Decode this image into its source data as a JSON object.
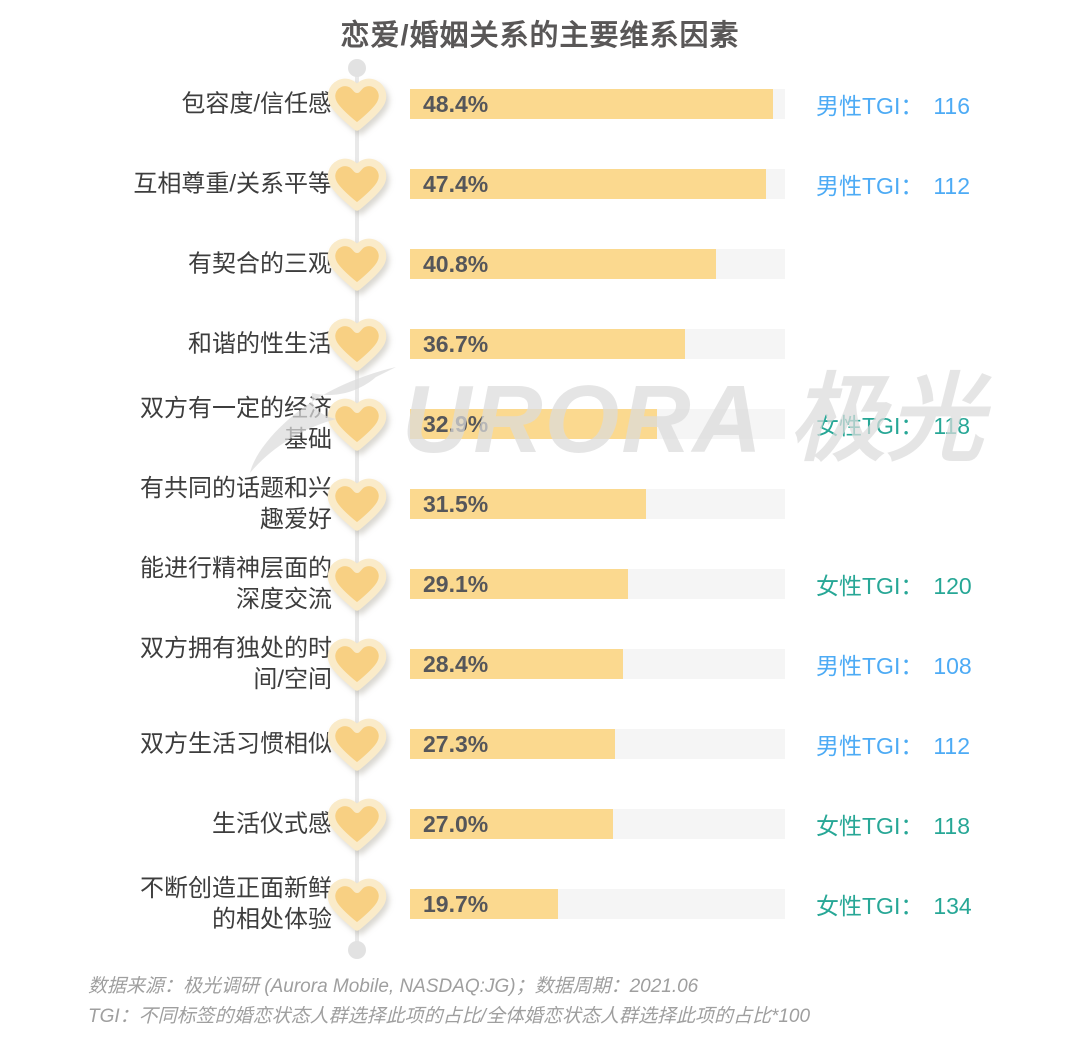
{
  "title": "恋爱/婚姻关系的主要维系因素",
  "watermark": {
    "logo": "aurora-swoosh-logo",
    "brand_text": "URORA 极光"
  },
  "footer": {
    "source_line": "数据来源：极光调研 (Aurora Mobile, NASDAQ:JG)；数据周期：2021.06",
    "tgi_note": "TGI：不同标签的婚恋状态人群选择此项的占比/全体婚恋状态人群选择此项的占比*100"
  },
  "colors": {
    "title_text": "#595757",
    "label_text": "#3d3d3d",
    "pct_text": "#55565a",
    "bar_fill": "#fbd98f",
    "bar_track": "#f5f5f5",
    "heart_fill": "#f8d083",
    "heart_border": "#faebc9",
    "male_tgi": "#4dabf5",
    "female_tgi": "#27a796",
    "timeline": "#e9e9e9",
    "footer_text": "#9f9f9f"
  },
  "chart_data": {
    "type": "bar",
    "orientation": "horizontal",
    "title": "恋爱/婚姻关系的主要维系因素",
    "value_unit": "%",
    "axis_max": 50,
    "grid": false,
    "legend": false,
    "categories": [
      "包容度/信任感",
      "互相尊重/关系平等",
      "有契合的三观",
      "和谐的性生活",
      "双方有一定的经济基础",
      "有共同的话题和兴趣爱好",
      "能进行精神层面的深度交流",
      "双方拥有独处的时间/空间",
      "双方生活习惯相似",
      "生活仪式感",
      "不断创造正面新鲜的相处体验"
    ],
    "values": [
      48.4,
      47.4,
      40.8,
      36.7,
      32.9,
      31.5,
      29.1,
      28.4,
      27.3,
      27.0,
      19.7
    ],
    "rows": [
      {
        "label_lines": "包容度/信任感",
        "value": 48.4,
        "pct_label": "48.4%",
        "tgi_label": "男性TGI：",
        "tgi_value": "116",
        "tgi_type": "male"
      },
      {
        "label_lines": "互相尊重/关系平等",
        "value": 47.4,
        "pct_label": "47.4%",
        "tgi_label": "男性TGI：",
        "tgi_value": "112",
        "tgi_type": "male"
      },
      {
        "label_lines": "有契合的三观",
        "value": 40.8,
        "pct_label": "40.8%",
        "tgi_label": null,
        "tgi_value": null,
        "tgi_type": null
      },
      {
        "label_lines": "和谐的性生活",
        "value": 36.7,
        "pct_label": "36.7%",
        "tgi_label": null,
        "tgi_value": null,
        "tgi_type": null
      },
      {
        "label_lines": "双方有一定的经济\n基础",
        "value": 32.9,
        "pct_label": "32.9%",
        "tgi_label": "女性TGI：",
        "tgi_value": "118",
        "tgi_type": "female"
      },
      {
        "label_lines": "有共同的话题和兴\n趣爱好",
        "value": 31.5,
        "pct_label": "31.5%",
        "tgi_label": null,
        "tgi_value": null,
        "tgi_type": null
      },
      {
        "label_lines": "能进行精神层面的\n深度交流",
        "value": 29.1,
        "pct_label": "29.1%",
        "tgi_label": "女性TGI：",
        "tgi_value": "120",
        "tgi_type": "female"
      },
      {
        "label_lines": "双方拥有独处的时\n间/空间",
        "value": 28.4,
        "pct_label": "28.4%",
        "tgi_label": "男性TGI：",
        "tgi_value": "108",
        "tgi_type": "male"
      },
      {
        "label_lines": "双方生活习惯相似",
        "value": 27.3,
        "pct_label": "27.3%",
        "tgi_label": "男性TGI：",
        "tgi_value": "112",
        "tgi_type": "male"
      },
      {
        "label_lines": "生活仪式感",
        "value": 27.0,
        "pct_label": "27.0%",
        "tgi_label": "女性TGI：",
        "tgi_value": "118",
        "tgi_type": "female"
      },
      {
        "label_lines": "不断创造正面新鲜\n的相处体验",
        "value": 19.7,
        "pct_label": "19.7%",
        "tgi_label": "女性TGI：",
        "tgi_value": "134",
        "tgi_type": "female"
      }
    ]
  }
}
